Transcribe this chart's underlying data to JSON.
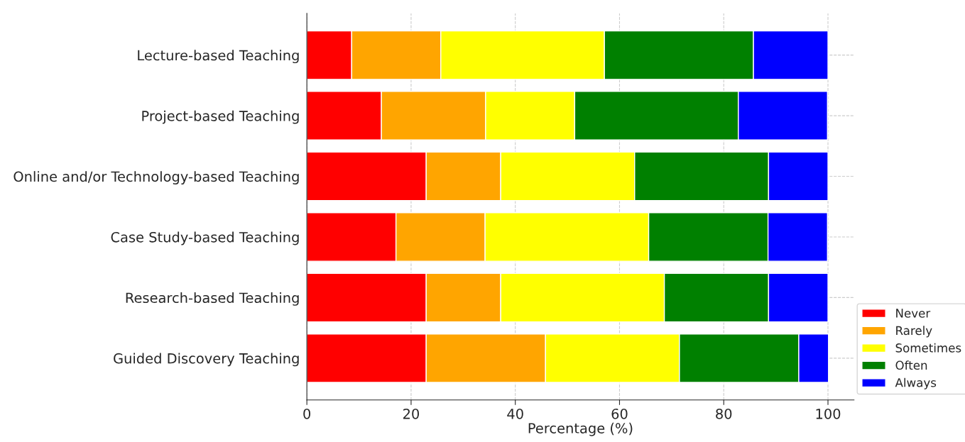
{
  "chart_data": {
    "type": "bar",
    "orientation": "horizontal",
    "stacked": true,
    "categories": [
      "Lecture-based Teaching",
      "Project-based Teaching",
      "Online and/or Technology-based Teaching",
      "Case Study-based Teaching",
      "Research-based Teaching",
      "Guided Discovery Teaching"
    ],
    "series": [
      {
        "name": "Never",
        "color": "#ff0000",
        "values": [
          8.6,
          14.3,
          22.9,
          17.1,
          22.9,
          22.9
        ]
      },
      {
        "name": "Rarely",
        "color": "#ffa500",
        "values": [
          17.1,
          20.0,
          14.3,
          17.1,
          14.3,
          22.9
        ]
      },
      {
        "name": "Sometimes",
        "color": "#ffff00",
        "values": [
          31.4,
          17.1,
          25.7,
          31.4,
          31.4,
          25.7
        ]
      },
      {
        "name": "Often",
        "color": "#008000",
        "values": [
          28.6,
          31.4,
          25.7,
          22.9,
          20.0,
          22.9
        ]
      },
      {
        "name": "Always",
        "color": "#0000ff",
        "values": [
          14.3,
          17.1,
          11.4,
          11.4,
          11.4,
          5.7
        ]
      }
    ],
    "xlabel": "Percentage (%)",
    "xlim": [
      0,
      105
    ],
    "xticks": [
      0,
      20,
      40,
      60,
      80,
      100
    ],
    "grid": true,
    "legend": "bottom right"
  }
}
